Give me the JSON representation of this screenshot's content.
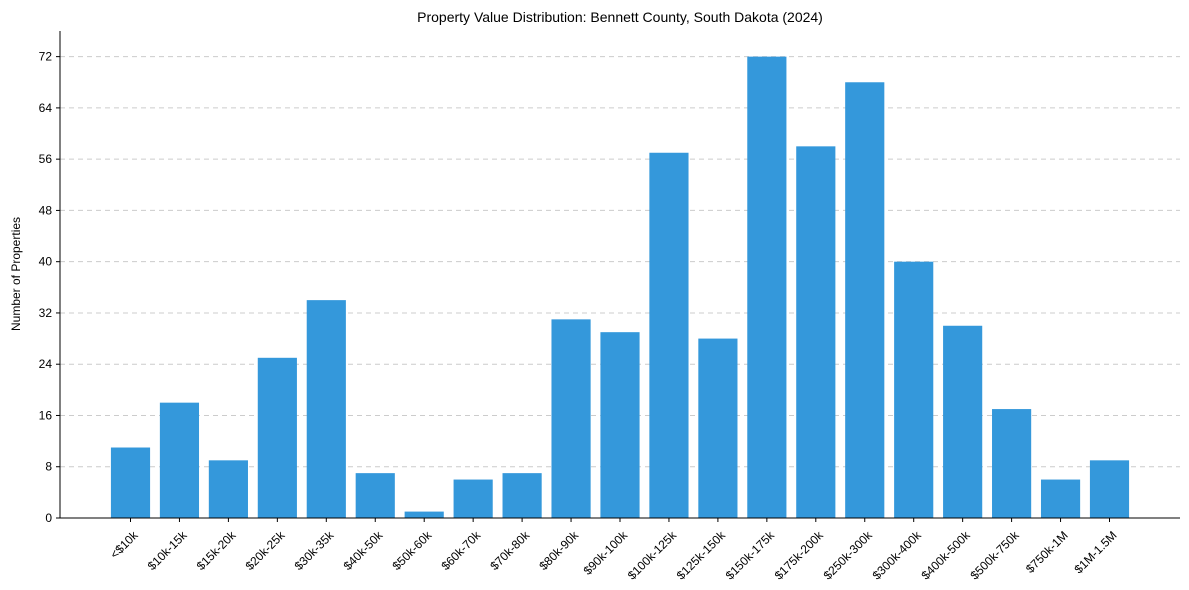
{
  "chart_data": {
    "type": "bar",
    "title": "Property Value Distribution: Bennett County, South Dakota (2024)",
    "xlabel": "",
    "ylabel": "Number of Properties",
    "ylim": [
      0,
      76
    ],
    "yticks": [
      0,
      8,
      16,
      24,
      32,
      40,
      48,
      56,
      64,
      72
    ],
    "grid": "y-dashed",
    "bar_color": "#3498db",
    "categories": [
      "<$10k",
      "$10k-15k",
      "$15k-20k",
      "$20k-25k",
      "$30k-35k",
      "$40k-50k",
      "$50k-60k",
      "$60k-70k",
      "$70k-80k",
      "$80k-90k",
      "$90k-100k",
      "$100k-125k",
      "$125k-150k",
      "$150k-175k",
      "$175k-200k",
      "$250k-300k",
      "$300k-400k",
      "$400k-500k",
      "$500k-750k",
      "$750k-1M",
      "$1M-1.5M"
    ],
    "values": [
      11,
      18,
      9,
      25,
      34,
      7,
      1,
      6,
      7,
      31,
      29,
      57,
      28,
      72,
      58,
      68,
      40,
      30,
      17,
      6,
      9
    ]
  }
}
